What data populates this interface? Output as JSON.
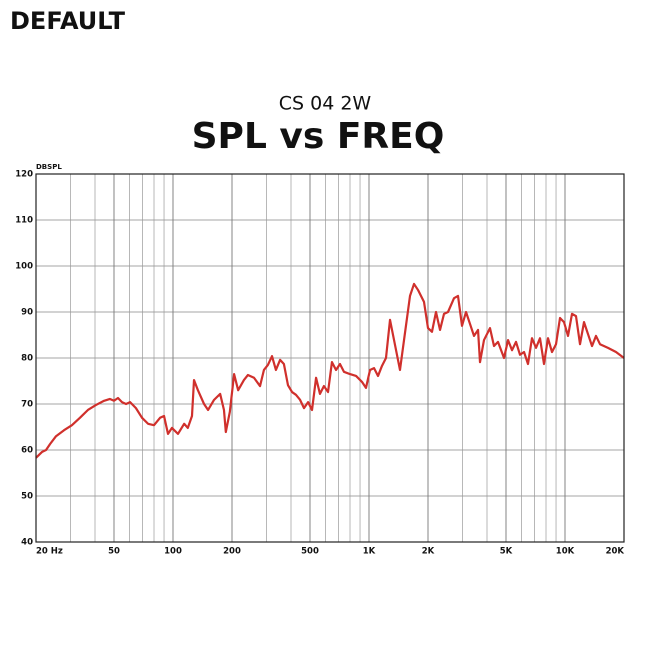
{
  "logo": "DEFAULT",
  "chart_data": {
    "type": "line",
    "title": "CS 04 2W",
    "subtitle": "SPL vs FREQ",
    "ylabel": "DBSPL",
    "xscale": "log",
    "xlim": [
      20,
      20000
    ],
    "ylim": [
      40,
      120
    ],
    "yticks": [
      40,
      50,
      60,
      70,
      80,
      90,
      100,
      110,
      120
    ],
    "xticks": [
      {
        "value": 20,
        "label": "20 Hz"
      },
      50,
      100,
      200,
      500,
      {
        "value": 1000,
        "label": "1K"
      },
      {
        "value": 2000,
        "label": "2K"
      },
      {
        "value": 5000,
        "label": "5K"
      },
      {
        "value": 10000,
        "label": "10K"
      },
      {
        "value": 20000,
        "label": "20K"
      }
    ],
    "xgrid": [
      30,
      40,
      60,
      70,
      80,
      90,
      300,
      400,
      600,
      700,
      800,
      900,
      3000,
      4000,
      6000,
      7000,
      8000,
      9000
    ],
    "grid": true,
    "series": [
      {
        "name": "CS 04 2W",
        "color": "#d0302c",
        "x": [
          20,
          21.5,
          22.5,
          23.6,
          25.3,
          27.8,
          30.5,
          33.5,
          36.8,
          40.5,
          44.5,
          47.7,
          50,
          52.4,
          54.9,
          57.6,
          60.4,
          64.7,
          69.5,
          74.6,
          80,
          85.9,
          90,
          94.3,
          98.8,
          106,
          114,
          119,
          125,
          128,
          134,
          144,
          151,
          162,
          174,
          182,
          186,
          195,
          205,
          215,
          230,
          241,
          259,
          278,
          291,
          305,
          320,
          335,
          352,
          368,
          386,
          405,
          424,
          445,
          466,
          489,
          512,
          537,
          562,
          589,
          618,
          647,
          679,
          711,
          745,
          800,
          859,
          921,
          965,
          1012,
          1061,
          1112,
          1165,
          1221,
          1280,
          1342,
          1439,
          1509,
          1619,
          1697,
          1778,
          1908,
          2000,
          2096,
          2197,
          2303,
          2414,
          2530,
          2715,
          2845,
          2982,
          3126,
          3276,
          3434,
          3600,
          3684,
          3861,
          4143,
          4343,
          4551,
          4885,
          5120,
          5367,
          5625,
          5895,
          6179,
          6475,
          6786,
          7113,
          7455,
          7813,
          8189,
          8585,
          8998,
          9431,
          9884,
          10360,
          10858,
          11380,
          11928,
          12502,
          13103,
          13733,
          14394,
          15087,
          16573,
          18207,
          20000
        ],
        "values": [
          58.3,
          59.6,
          60,
          61.3,
          63,
          64.3,
          65.4,
          67,
          68.7,
          69.8,
          70.7,
          71.1,
          70.7,
          71.3,
          70.4,
          70,
          70.4,
          69.1,
          67,
          65.7,
          65.4,
          67,
          67.4,
          63.5,
          64.8,
          63.5,
          65.7,
          64.8,
          67.4,
          75.2,
          73,
          70,
          68.7,
          70.9,
          72.2,
          68.7,
          63.9,
          68.3,
          76.5,
          73,
          75.2,
          76.3,
          75.7,
          73.9,
          77.4,
          78.5,
          80.4,
          77.4,
          79.6,
          78.7,
          74.1,
          72.6,
          72,
          70.9,
          69.1,
          70.4,
          68.7,
          75.7,
          72.2,
          73.9,
          72.6,
          79.1,
          77.4,
          78.7,
          77,
          76.5,
          76.1,
          74.8,
          73.5,
          77.4,
          77.8,
          76.1,
          78.3,
          80,
          88.3,
          83.9,
          77.4,
          83.9,
          93.5,
          96.1,
          94.8,
          92.2,
          86.5,
          85.7,
          90,
          86.1,
          89.6,
          90,
          93,
          93.5,
          87,
          90,
          87.4,
          84.8,
          86.1,
          79.1,
          83.9,
          86.5,
          82.6,
          83.5,
          80,
          83.9,
          81.7,
          83.5,
          80.7,
          81.3,
          78.7,
          84.3,
          82.2,
          84.3,
          78.7,
          84.3,
          81.3,
          83,
          88.7,
          87.8,
          84.8,
          89.6,
          89.1,
          83,
          87.8,
          85.2,
          82.6,
          84.8,
          83,
          82.2,
          81.3,
          80
        ]
      }
    ]
  }
}
